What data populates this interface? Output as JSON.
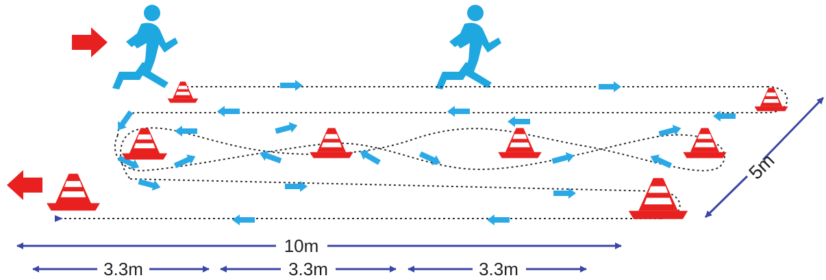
{
  "colors": {
    "accent_red": "#e8201f",
    "runner_blue": "#1fa7e0",
    "arrow_blue": "#2aa9e6",
    "dimension_blue": "#3a46a6",
    "path_dots": "#2b2b2b"
  },
  "icons": {
    "start": "arrow-right-icon",
    "finish": "arrow-left-icon",
    "runner": "runner-icon",
    "cone": "traffic-cone-icon"
  },
  "dimensions": {
    "total_length": "10m",
    "segment_1": "3.3m",
    "segment_2": "3.3m",
    "segment_3": "3.3m",
    "width": "5m"
  }
}
